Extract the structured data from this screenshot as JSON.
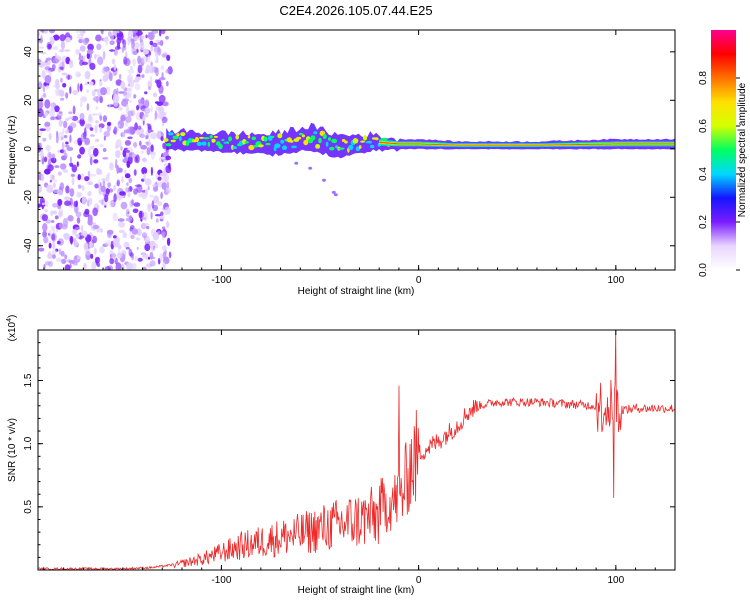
{
  "title": "C2E4.2026.105.07.44.E25",
  "chart_data": [
    {
      "type": "heatmap",
      "xlabel": "Height of straight line (km)",
      "ylabel": "Frequency (Hz)",
      "xlim": [
        -193,
        130
      ],
      "ylim": [
        -50,
        49
      ],
      "xticks": [
        -100,
        0,
        100
      ],
      "yticks": [
        -40,
        -20,
        0,
        20,
        40
      ],
      "xtick_labels": [
        "-100",
        "0",
        "100"
      ],
      "ytick_labels": [
        "-40",
        "-20",
        "0",
        "20",
        "40"
      ],
      "noise_region_x": [
        -193,
        -128
      ],
      "signal_band": [
        {
          "x": -128,
          "center": 4,
          "width": 7
        },
        {
          "x": -100,
          "center": 3,
          "width": 7
        },
        {
          "x": -75,
          "center": 2,
          "width": 8
        },
        {
          "x": -55,
          "center": 5,
          "width": 9
        },
        {
          "x": -40,
          "center": 1,
          "width": 9
        },
        {
          "x": -25,
          "center": 3,
          "width": 6
        },
        {
          "x": -10,
          "center": 2,
          "width": 4
        },
        {
          "x": 0,
          "center": 2,
          "width": 4
        },
        {
          "x": 20,
          "center": 1.5,
          "width": 3
        },
        {
          "x": 60,
          "center": 1.5,
          "width": 3
        },
        {
          "x": 100,
          "center": 2,
          "width": 4
        },
        {
          "x": 130,
          "center": 2,
          "width": 4
        }
      ],
      "colorbar": {
        "label": "Normalized spectral amplitude",
        "range": [
          0,
          1
        ],
        "ticks": [
          0.0,
          0.2,
          0.4,
          0.6,
          0.8
        ],
        "tick_labels": [
          "0.0",
          "0.2",
          "0.4",
          "0.6",
          "0.8"
        ],
        "colors": [
          "#ffffff",
          "#e9d6ff",
          "#7a1dff",
          "#1515ff",
          "#00d8ff",
          "#00ff60",
          "#d4ff00",
          "#ffe000",
          "#ff7000",
          "#ff0000",
          "#ff0090"
        ]
      }
    },
    {
      "type": "line",
      "xlabel": "Height of straight line (km)",
      "ylabel": "SNR (10 * v/v)",
      "y_multiplier_base": "(x10",
      "y_multiplier_exp": "4",
      "y_multiplier_close": ")",
      "xlim": [
        -193,
        130
      ],
      "ylim": [
        0,
        1.9
      ],
      "xticks": [
        -100,
        0,
        100
      ],
      "yticks": [
        0.5,
        1.0,
        1.5
      ],
      "xtick_labels": [
        "-100",
        "0",
        "100"
      ],
      "ytick_labels": [
        "0.5",
        "1.0",
        "1.5"
      ],
      "color": "#ee2a2a",
      "series": [
        {
          "name": "SNR",
          "x": [
            -193,
            -150,
            -135,
            -125,
            -110,
            -100,
            -90,
            -80,
            -70,
            -60,
            -50,
            -40,
            -30,
            -20,
            -12,
            -8,
            -5,
            0,
            10,
            20,
            25,
            30,
            40,
            50,
            60,
            70,
            80,
            90,
            95,
            100,
            105,
            110,
            120,
            130
          ],
          "y": [
            0.01,
            0.01,
            0.02,
            0.04,
            0.1,
            0.16,
            0.22,
            0.26,
            0.3,
            0.33,
            0.38,
            0.42,
            0.46,
            0.5,
            0.55,
            0.6,
            0.8,
            0.92,
            1.02,
            1.15,
            1.25,
            1.3,
            1.33,
            1.33,
            1.33,
            1.32,
            1.31,
            1.3,
            1.3,
            1.28,
            1.27,
            1.28,
            1.28,
            1.28
          ]
        }
      ],
      "spikes": [
        {
          "x": -10,
          "y": 1.46
        },
        {
          "x": 100,
          "y": 1.9
        },
        {
          "x": 99,
          "y": 0.57
        }
      ]
    }
  ]
}
